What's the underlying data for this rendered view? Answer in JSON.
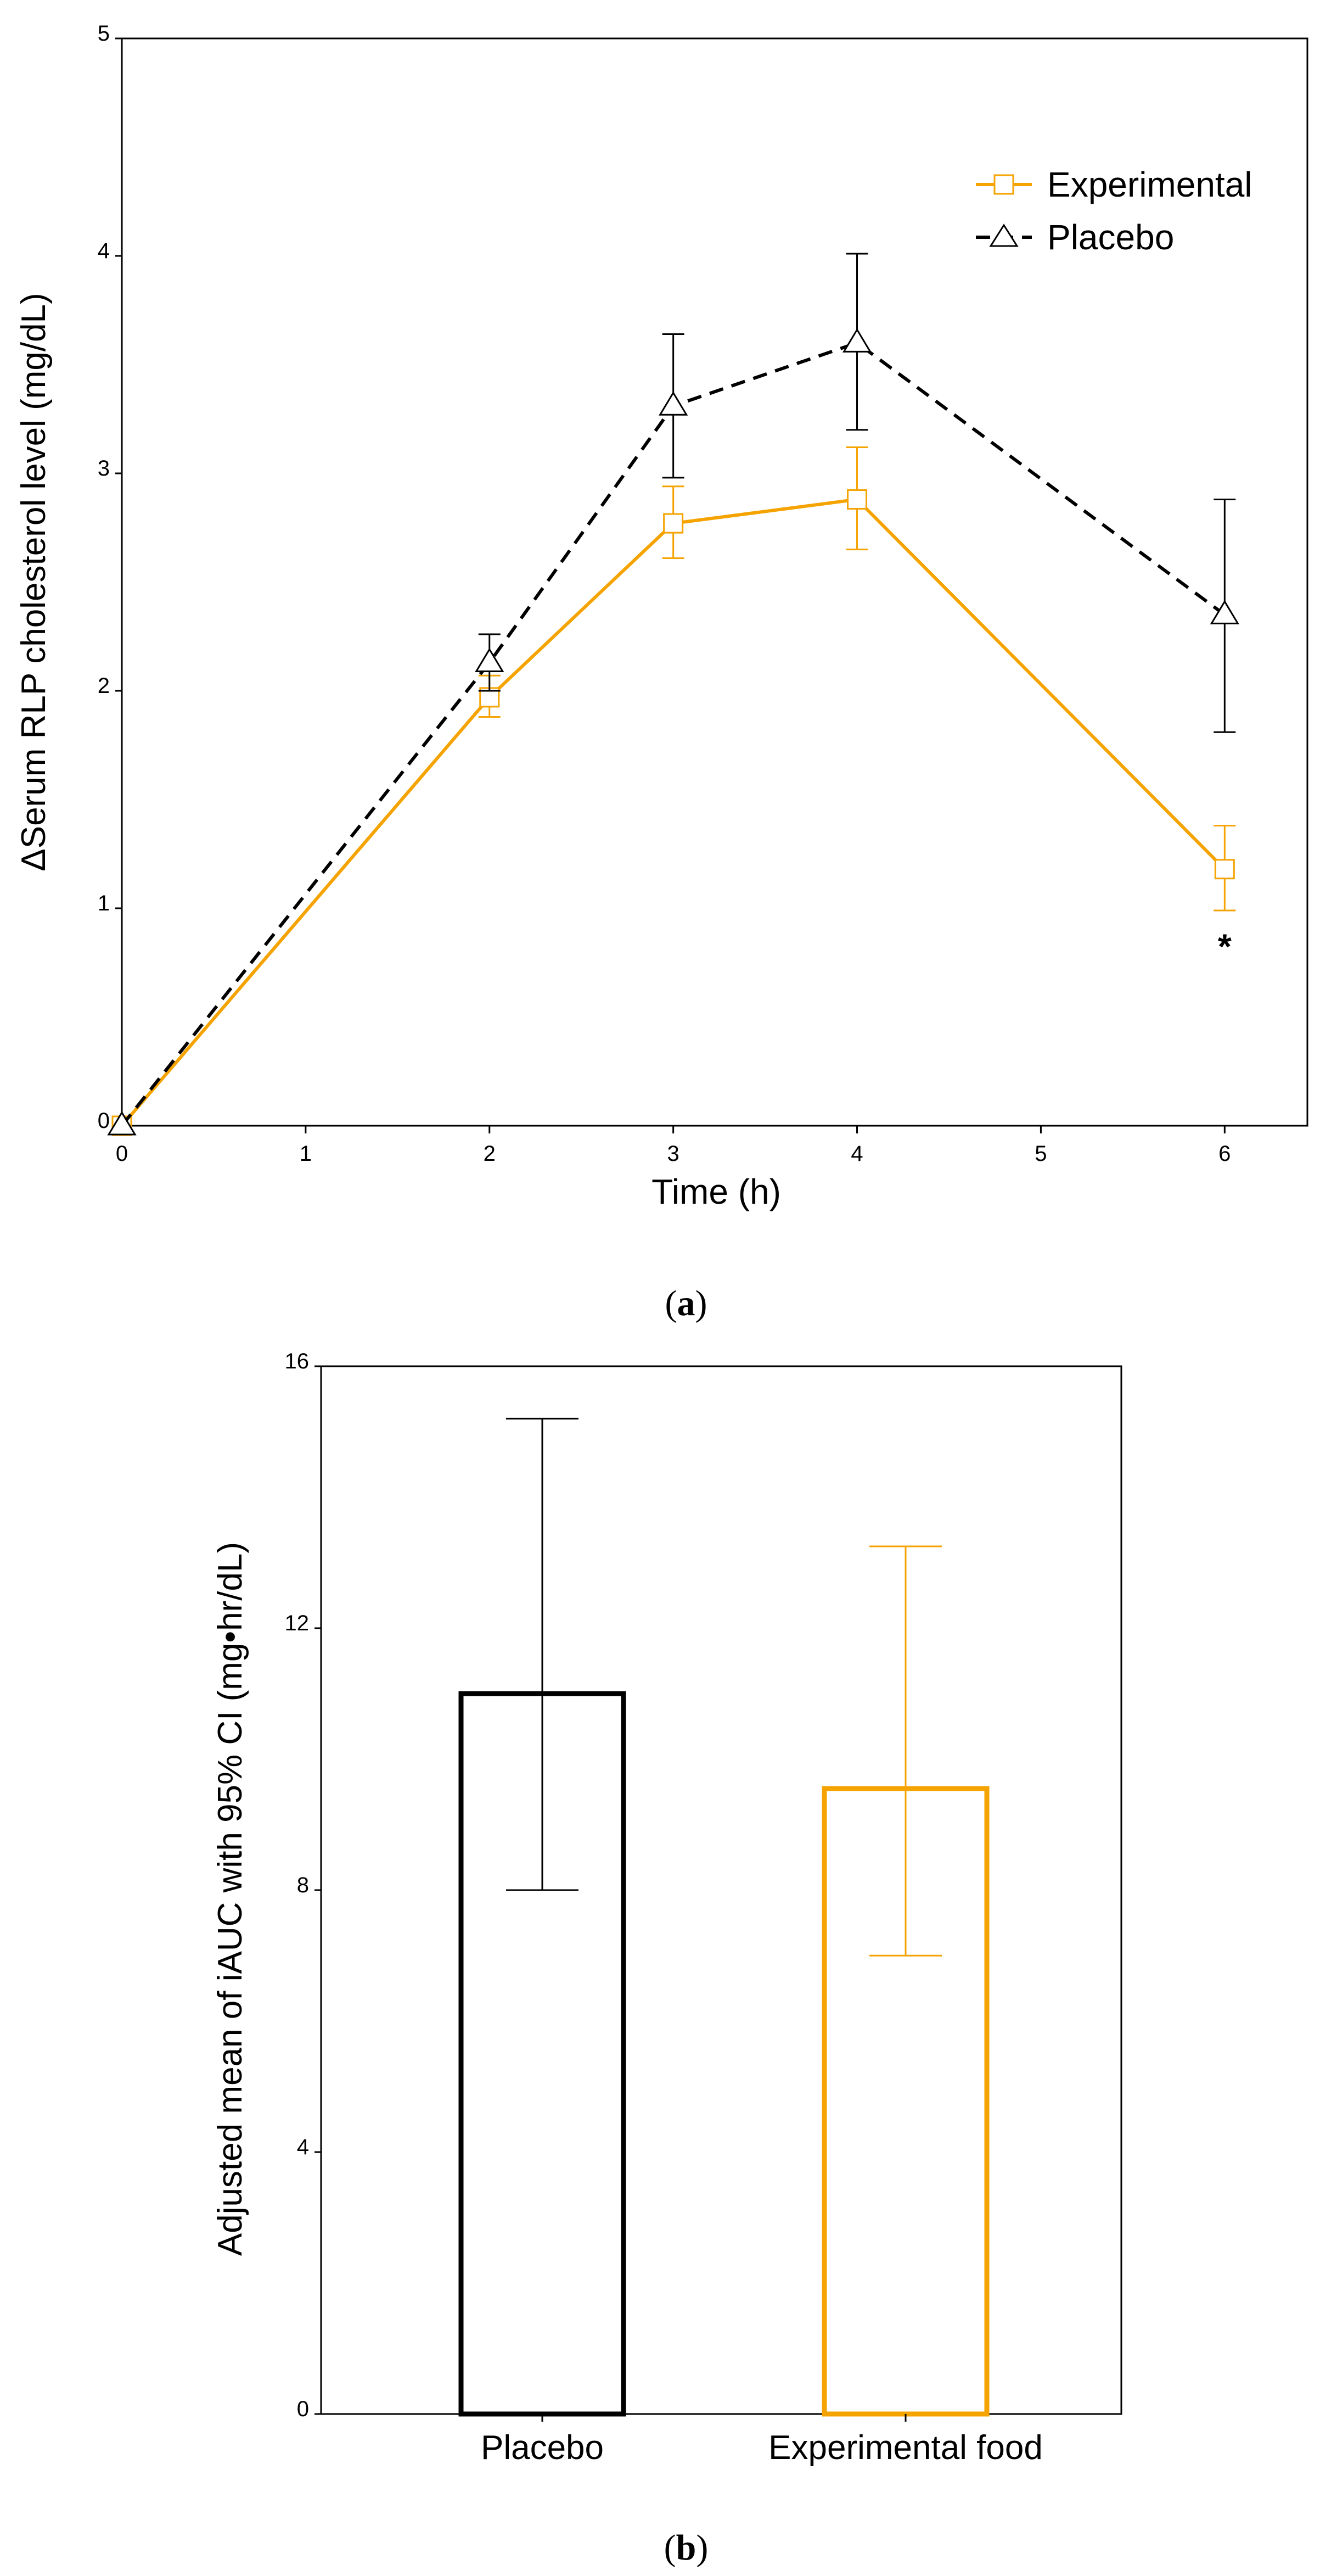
{
  "colors": {
    "experimental": "#F5A300",
    "placebo": "#000000",
    "axis": "#000000"
  },
  "chart_data": [
    {
      "type": "line",
      "panel_label": "a",
      "xlabel": "Time (h)",
      "ylabel": "ΔSerum RLP cholesterol level (mg/dL)",
      "xlim": [
        0,
        6.45
      ],
      "ylim": [
        0,
        5
      ],
      "xticks": [
        "0",
        "1",
        "2",
        "3",
        "4",
        "5",
        "6"
      ],
      "yticks": [
        "0",
        "1",
        "2",
        "3",
        "4",
        "5"
      ],
      "legend_position": "top-right",
      "series": [
        {
          "name": "Experimental",
          "color_key": "experimental",
          "marker": "square",
          "line": "solid",
          "x": [
            0,
            2,
            3,
            4,
            6
          ],
          "y": [
            0,
            1.97,
            2.77,
            2.88,
            1.18
          ],
          "err_low": [
            0,
            1.88,
            2.61,
            2.65,
            0.99
          ],
          "err_high": [
            0,
            2.07,
            2.94,
            3.12,
            1.38
          ]
        },
        {
          "name": "Placebo",
          "color_key": "placebo",
          "marker": "triangle",
          "line": "dashed",
          "x": [
            0,
            2,
            3,
            4,
            6
          ],
          "y": [
            0,
            2.13,
            3.31,
            3.6,
            2.35
          ],
          "err_low": [
            0,
            2.0,
            2.98,
            3.2,
            1.81
          ],
          "err_high": [
            0,
            2.26,
            3.64,
            4.01,
            2.88
          ]
        }
      ],
      "annotations": [
        {
          "text": "*",
          "x": 6,
          "y": 0.82
        }
      ]
    },
    {
      "type": "bar",
      "panel_label": "b",
      "xlabel": "",
      "ylabel": "Adjusted mean of iAUC with 95% CI (mg•hr/dL)",
      "ylim": [
        0,
        16
      ],
      "yticks": [
        "0",
        "4",
        "8",
        "12",
        "16"
      ],
      "categories": [
        "Placebo",
        "Experimental food"
      ],
      "color_keys": [
        "placebo",
        "experimental"
      ],
      "values": [
        11.0,
        9.55
      ],
      "ci_low": [
        8.0,
        7.0
      ],
      "ci_high": [
        15.2,
        13.25
      ]
    }
  ]
}
